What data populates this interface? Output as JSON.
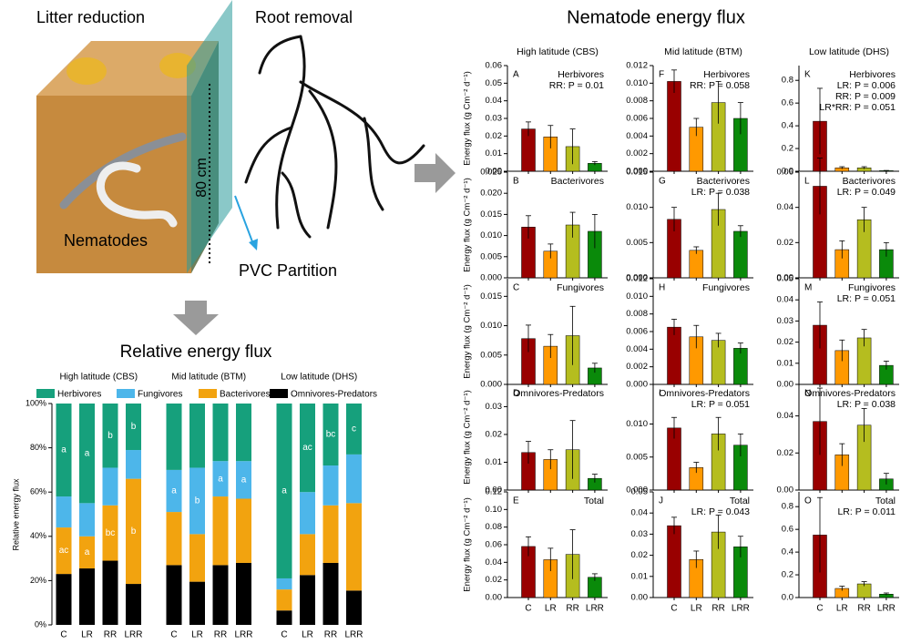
{
  "illustration": {
    "labels": [
      "Litter reduction",
      "Root removal",
      "80 cm",
      "Nematodes",
      "PVC Partition"
    ]
  },
  "panel_title": "Nematode energy flux",
  "column_titles": [
    "High latitude (CBS)",
    "Mid latitude (BTM)",
    "Low latitude (DHS)"
  ],
  "chart_data": [
    {
      "type": "stacked_bar",
      "title": "Relative energy flux",
      "groups": [
        "High latitude (CBS)",
        "Mid latitude (BTM)",
        "Low latitude (DHS)"
      ],
      "categories": [
        "C",
        "LR",
        "RR",
        "LRR",
        "C",
        "LR",
        "RR",
        "LRR",
        "C",
        "LR",
        "RR",
        "LRR"
      ],
      "ylabel": "Relative energy flux",
      "ylim": [
        0,
        100
      ],
      "yticks": [
        {
          "value": 0,
          "label": "0%"
        },
        {
          "value": 20,
          "label": "20%"
        },
        {
          "value": 40,
          "label": "40%"
        },
        {
          "value": 60,
          "label": "60%"
        },
        {
          "value": 80,
          "label": "80%"
        },
        {
          "value": 100,
          "label": "100%"
        }
      ],
      "series": [
        {
          "name": "Herbivores",
          "color": "#16a07c",
          "values": [
            42,
            45,
            29,
            21,
            30,
            29,
            26,
            26,
            79,
            40,
            28,
            23
          ],
          "letters": [
            "a",
            "a",
            "b",
            "b",
            null,
            null,
            null,
            null,
            "a",
            "ac",
            "bc",
            "c"
          ]
        },
        {
          "name": "Fungivores",
          "color": "#4db6ea",
          "values": [
            14,
            15,
            17,
            13,
            19,
            30,
            16,
            17,
            5,
            19,
            18,
            22
          ],
          "letters": [
            null,
            null,
            null,
            null,
            "a",
            "b",
            "a",
            "a",
            null,
            null,
            null,
            null
          ]
        },
        {
          "name": "Bacterivores",
          "color": "#f2a30f",
          "values": [
            21,
            14.5,
            25,
            47.5,
            24,
            21.5,
            31,
            29,
            9.5,
            18.5,
            26,
            39.5
          ],
          "letters": [
            "ac",
            "a",
            "bc",
            "b",
            null,
            null,
            null,
            null,
            null,
            null,
            null,
            null
          ]
        },
        {
          "name": "Omnivores-Predators",
          "color": "#000000",
          "values": [
            23,
            25.5,
            29,
            18.5,
            27,
            19.5,
            27,
            28,
            6.5,
            22.5,
            28,
            15.5
          ],
          "letters": [
            null,
            null,
            null,
            null,
            null,
            null,
            null,
            null,
            null,
            null,
            null,
            null
          ]
        }
      ]
    },
    {
      "type": "bar",
      "label": "A",
      "title": "Herbivores",
      "stats": [
        "RR: P = 0.01"
      ],
      "ylabel": "Energy flux (g Cm⁻² d⁻¹)",
      "ylim": [
        0,
        0.06
      ],
      "yticks": [
        {
          "value": 0,
          "label": "0.00"
        },
        0.01,
        0.02,
        0.03,
        0.04,
        0.05,
        0.06
      ],
      "values": [
        0.024,
        0.0195,
        0.014,
        0.0045
      ],
      "errors": [
        0.004,
        0.0065,
        0.01,
        0.001
      ],
      "colors": [
        "#990000",
        "#ff9900",
        "#b5bd1f",
        "#0a8a0a"
      ]
    },
    {
      "type": "bar",
      "label": "B",
      "title": "Bacterivores",
      "ylabel": "Energy flux (g Cm⁻² d⁻¹)",
      "ylim": [
        0,
        0.025
      ],
      "yticks": [
        {
          "value": 0,
          "label": "0.000"
        },
        0.005,
        {
          "value": 0.01,
          "label": "0.010"
        },
        0.015,
        {
          "value": 0.02,
          "label": "0.020"
        },
        0.025
      ],
      "values": [
        0.012,
        0.0063,
        0.0125,
        0.011
      ],
      "errors": [
        0.0027,
        0.0017,
        0.003,
        0.004
      ],
      "colors": [
        "#990000",
        "#ff9900",
        "#b5bd1f",
        "#0a8a0a"
      ]
    },
    {
      "type": "bar",
      "label": "C",
      "title": "Fungivores",
      "ylabel": "Energy flux (g Cm⁻² d⁻¹)",
      "ylim": [
        0,
        0.018
      ],
      "yticks": [
        {
          "value": 0,
          "label": "0.000"
        },
        0.005,
        {
          "value": 0.01,
          "label": "0.010"
        },
        0.015
      ],
      "values": [
        0.0078,
        0.0065,
        0.0083,
        0.0028
      ],
      "errors": [
        0.0023,
        0.002,
        0.005,
        0.0008
      ],
      "colors": [
        "#990000",
        "#ff9900",
        "#b5bd1f",
        "#0a8a0a"
      ]
    },
    {
      "type": "bar",
      "label": "D",
      "title": "Omnivores-Predators",
      "ylabel": "Energy flux (g Cm⁻² d⁻¹)",
      "ylim": [
        0,
        0.038
      ],
      "yticks": [
        {
          "value": 0,
          "label": "0.00"
        },
        0.01,
        0.02,
        0.03
      ],
      "values": [
        0.0135,
        0.011,
        0.0145,
        0.0042
      ],
      "errors": [
        0.004,
        0.0035,
        0.0105,
        0.0015
      ],
      "colors": [
        "#990000",
        "#ff9900",
        "#b5bd1f",
        "#0a8a0a"
      ]
    },
    {
      "type": "bar",
      "label": "E",
      "title": "Total",
      "ylabel": "Energy flux (g Cm⁻² d⁻¹)",
      "ylim": [
        0,
        0.12
      ],
      "yticks": [
        {
          "value": 0,
          "label": "0.00"
        },
        0.02,
        0.04,
        0.06,
        0.08,
        {
          "value": 0.1,
          "label": "0.10"
        },
        0.12
      ],
      "values": [
        0.058,
        0.043,
        0.049,
        0.023
      ],
      "errors": [
        0.011,
        0.013,
        0.028,
        0.004
      ],
      "colors": [
        "#990000",
        "#ff9900",
        "#b5bd1f",
        "#0a8a0a"
      ],
      "categories": [
        "C",
        "LR",
        "RR",
        "LRR"
      ]
    },
    {
      "type": "bar",
      "label": "F",
      "title": "Herbivores",
      "stats": [
        "RR: P = 0.058"
      ],
      "ylim": [
        0,
        0.012
      ],
      "yticks": [
        {
          "value": 0,
          "label": "0.000"
        },
        0.002,
        0.004,
        0.006,
        0.008,
        {
          "value": 0.01,
          "label": "0.010"
        },
        0.012
      ],
      "values": [
        0.0102,
        0.005,
        0.0078,
        0.006
      ],
      "errors": [
        0.0013,
        0.001,
        0.0024,
        0.0018
      ],
      "colors": [
        "#990000",
        "#ff9900",
        "#b5bd1f",
        "#0a8a0a"
      ]
    },
    {
      "type": "bar",
      "label": "G",
      "title": "Bacterivores",
      "stats": [
        "LR: P = 0.038"
      ],
      "ylim": [
        0,
        0.015
      ],
      "yticks": [
        {
          "value": 0,
          "label": "0.000"
        },
        0.005,
        {
          "value": 0.01,
          "label": "0.010"
        },
        0.015
      ],
      "values": [
        0.0083,
        0.0039,
        0.0097,
        0.0066
      ],
      "errors": [
        0.0017,
        0.0005,
        0.0023,
        0.0008
      ],
      "colors": [
        "#990000",
        "#ff9900",
        "#b5bd1f",
        "#0a8a0a"
      ]
    },
    {
      "type": "bar",
      "label": "H",
      "title": "Fungivores",
      "ylim": [
        0,
        0.012
      ],
      "yticks": [
        {
          "value": 0,
          "label": "0.000"
        },
        0.002,
        0.004,
        0.006,
        0.008,
        {
          "value": 0.01,
          "label": "0.010"
        },
        0.012
      ],
      "values": [
        0.0065,
        0.0054,
        0.005,
        0.0041
      ],
      "errors": [
        0.0009,
        0.0013,
        0.0008,
        0.0006
      ],
      "colors": [
        "#990000",
        "#ff9900",
        "#b5bd1f",
        "#0a8a0a"
      ]
    },
    {
      "type": "bar",
      "label": "I",
      "title": "Omnivores-Predators",
      "stats": [
        "LR: P = 0.051"
      ],
      "ylim": [
        0,
        0.016
      ],
      "yticks": [
        {
          "value": 0,
          "label": "0.000"
        },
        0.005,
        {
          "value": 0.01,
          "label": "0.010"
        }
      ],
      "values": [
        0.0094,
        0.0034,
        0.0085,
        0.0068
      ],
      "errors": [
        0.0016,
        0.0008,
        0.0025,
        0.0017
      ],
      "colors": [
        "#990000",
        "#ff9900",
        "#b5bd1f",
        "#0a8a0a"
      ]
    },
    {
      "type": "bar",
      "label": "J",
      "title": "Total",
      "stats": [
        "LR: P = 0.043"
      ],
      "ylim": [
        0,
        0.05
      ],
      "yticks": [
        {
          "value": 0,
          "label": "0.00"
        },
        0.01,
        0.02,
        0.03,
        0.04,
        0.05
      ],
      "values": [
        0.034,
        0.018,
        0.031,
        0.024
      ],
      "errors": [
        0.004,
        0.004,
        0.008,
        0.005
      ],
      "colors": [
        "#990000",
        "#ff9900",
        "#b5bd1f",
        "#0a8a0a"
      ],
      "categories": [
        "C",
        "LR",
        "RR",
        "LRR"
      ]
    },
    {
      "type": "bar",
      "label": "K",
      "title": "Herbivores",
      "stats": [
        "LR: P = 0.006",
        "RR: P = 0.009",
        "LR*RR: P = 0.051"
      ],
      "ylim": [
        0,
        0.93
      ],
      "yticks": [
        {
          "value": 0,
          "label": "0.0"
        },
        0.2,
        0.4,
        0.6,
        0.8
      ],
      "values": [
        0.44,
        0.03,
        0.03,
        0.005
      ],
      "errors": [
        0.29,
        0.01,
        0.01,
        0.002
      ],
      "colors": [
        "#990000",
        "#ff9900",
        "#b5bd1f",
        "#0a8a0a"
      ]
    },
    {
      "type": "bar",
      "label": "L",
      "title": "Bacterivores",
      "stats": [
        "LR: P = 0.049"
      ],
      "ylim": [
        0,
        0.06
      ],
      "yticks": [
        {
          "value": 0,
          "label": "0.00"
        },
        0.02,
        0.04,
        0.06
      ],
      "values": [
        0.052,
        0.016,
        0.033,
        0.016
      ],
      "errors": [
        0.016,
        0.005,
        0.007,
        0.004
      ],
      "colors": [
        "#990000",
        "#ff9900",
        "#b5bd1f",
        "#0a8a0a"
      ]
    },
    {
      "type": "bar",
      "label": "M",
      "title": "Fungivores",
      "stats": [
        "LR: P = 0.051"
      ],
      "ylim": [
        0,
        0.05
      ],
      "yticks": [
        {
          "value": 0,
          "label": "0.00"
        },
        0.01,
        0.02,
        0.03,
        0.04,
        0.05
      ],
      "values": [
        0.028,
        0.016,
        0.022,
        0.009
      ],
      "errors": [
        0.011,
        0.005,
        0.004,
        0.002
      ],
      "colors": [
        "#990000",
        "#ff9900",
        "#b5bd1f",
        "#0a8a0a"
      ]
    },
    {
      "type": "bar",
      "label": "N",
      "title": "Omnivores-Predators",
      "stats": [
        "LR: P = 0.038"
      ],
      "ylim": [
        0,
        0.057
      ],
      "yticks": [
        {
          "value": 0,
          "label": "0.00"
        },
        0.02,
        0.04
      ],
      "values": [
        0.037,
        0.019,
        0.035,
        0.006
      ],
      "errors": [
        0.018,
        0.006,
        0.009,
        0.003
      ],
      "colors": [
        "#990000",
        "#ff9900",
        "#b5bd1f",
        "#0a8a0a"
      ]
    },
    {
      "type": "bar",
      "label": "O",
      "title": "Total",
      "stats": [
        "LR: P = 0.011"
      ],
      "ylim": [
        0,
        0.93
      ],
      "yticks": [
        {
          "value": 0,
          "label": "0.0"
        },
        0.2,
        0.4,
        0.6,
        0.8
      ],
      "values": [
        0.55,
        0.08,
        0.12,
        0.03
      ],
      "errors": [
        0.33,
        0.02,
        0.02,
        0.01
      ],
      "colors": [
        "#990000",
        "#ff9900",
        "#b5bd1f",
        "#0a8a0a"
      ],
      "categories": [
        "C",
        "LR",
        "RR",
        "LRR"
      ]
    }
  ]
}
